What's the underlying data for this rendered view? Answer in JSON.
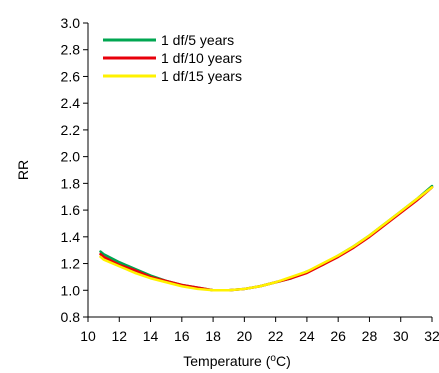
{
  "chart_data": {
    "type": "line",
    "title": "",
    "xlabel": "Temperature (",
    "xlabel_sup": "o",
    "xlabel_suffix": "C)",
    "ylabel": "RR",
    "xlim": [
      10,
      32
    ],
    "ylim": [
      0.8,
      3.0
    ],
    "xticks": [
      10,
      12,
      14,
      16,
      18,
      20,
      22,
      24,
      26,
      28,
      30,
      32
    ],
    "xtick_labels": [
      "10",
      "12",
      "14",
      "16",
      "18",
      "20",
      "22",
      "24",
      "26",
      "28",
      "30",
      "32"
    ],
    "yticks": [
      0.8,
      1.0,
      1.2,
      1.4,
      1.6,
      1.8,
      2.0,
      2.2,
      2.4,
      2.6,
      2.8,
      3.0
    ],
    "ytick_labels": [
      "0.8",
      "1.0",
      "1.2",
      "1.4",
      "1.6",
      "1.8",
      "2.0",
      "2.2",
      "2.4",
      "2.6",
      "2.8",
      "3.0"
    ],
    "grid": false,
    "legend_position": "top-left",
    "series": [
      {
        "name": "1 df/5 years",
        "color": "#00a651",
        "x": [
          10.8,
          11,
          12,
          13,
          14,
          15,
          16,
          17,
          18,
          19,
          20,
          21,
          22,
          23,
          24,
          25,
          26,
          27,
          28,
          29,
          30,
          31,
          32
        ],
        "y": [
          1.29,
          1.27,
          1.21,
          1.16,
          1.11,
          1.07,
          1.04,
          1.02,
          1.0,
          1.0,
          1.01,
          1.03,
          1.06,
          1.09,
          1.14,
          1.19,
          1.26,
          1.33,
          1.41,
          1.5,
          1.59,
          1.68,
          1.78
        ]
      },
      {
        "name": "1 df/10 years",
        "color": "#e8000b",
        "x": [
          10.8,
          11,
          12,
          13,
          14,
          15,
          16,
          17,
          18,
          19,
          20,
          21,
          22,
          23,
          24,
          25,
          26,
          27,
          28,
          29,
          30,
          31,
          32
        ],
        "y": [
          1.27,
          1.25,
          1.19,
          1.15,
          1.1,
          1.07,
          1.04,
          1.02,
          1.0,
          1.0,
          1.01,
          1.03,
          1.06,
          1.09,
          1.13,
          1.19,
          1.25,
          1.32,
          1.4,
          1.49,
          1.58,
          1.67,
          1.77
        ]
      },
      {
        "name": "1 df/15 years",
        "color": "#fff200",
        "x": [
          10.8,
          11,
          12,
          13,
          14,
          15,
          16,
          17,
          18,
          19,
          20,
          21,
          22,
          23,
          24,
          25,
          26,
          27,
          28,
          29,
          30,
          31,
          32
        ],
        "y": [
          1.25,
          1.23,
          1.18,
          1.13,
          1.09,
          1.06,
          1.03,
          1.01,
          1.0,
          1.0,
          1.01,
          1.03,
          1.06,
          1.1,
          1.14,
          1.2,
          1.26,
          1.33,
          1.41,
          1.5,
          1.59,
          1.68,
          1.77
        ]
      }
    ]
  }
}
